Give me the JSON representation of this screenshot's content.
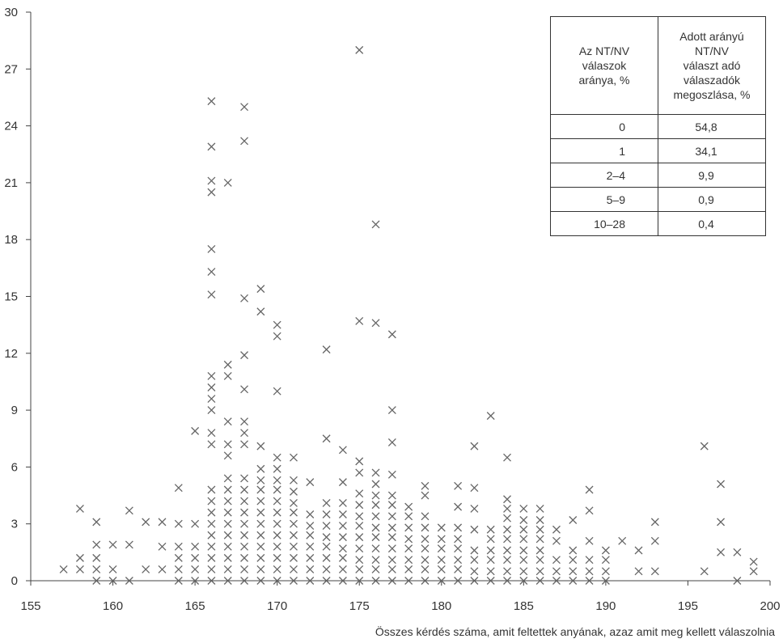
{
  "chart_data": {
    "type": "scatter",
    "title": "",
    "xlabel": "Összes kérdés száma, amit feltettek anyának, azaz amit meg kellett válaszolnia",
    "ylabel": "",
    "xlim": [
      155,
      200
    ],
    "ylim": [
      0,
      30
    ],
    "xticks": [
      "155",
      "160",
      "165",
      "170",
      "175",
      "180",
      "185",
      "190",
      "195",
      "200"
    ],
    "yticks": [
      "0",
      "3",
      "6",
      "9",
      "12",
      "15",
      "18",
      "21",
      "24",
      "27",
      "30"
    ],
    "marker": "x",
    "color": "#666666",
    "points": [
      [
        157,
        0.6
      ],
      [
        158,
        0.6
      ],
      [
        158,
        1.2
      ],
      [
        158,
        3.8
      ],
      [
        159,
        0
      ],
      [
        159,
        0.6
      ],
      [
        159,
        1.2
      ],
      [
        159,
        1.9
      ],
      [
        159,
        3.1
      ],
      [
        160,
        0
      ],
      [
        160,
        0.6
      ],
      [
        160,
        1.9
      ],
      [
        161,
        0
      ],
      [
        161,
        1.9
      ],
      [
        161,
        3.7
      ],
      [
        162,
        0.6
      ],
      [
        162,
        3.1
      ],
      [
        163,
        0.6
      ],
      [
        163,
        1.8
      ],
      [
        163,
        3.1
      ],
      [
        164,
        0
      ],
      [
        164,
        0.6
      ],
      [
        164,
        1.2
      ],
      [
        164,
        1.8
      ],
      [
        164,
        3.0
      ],
      [
        164,
        4.9
      ],
      [
        165,
        0
      ],
      [
        165,
        0.6
      ],
      [
        165,
        1.2
      ],
      [
        165,
        1.8
      ],
      [
        165,
        3.0
      ],
      [
        165,
        7.9
      ],
      [
        166,
        0
      ],
      [
        166,
        0.6
      ],
      [
        166,
        1.2
      ],
      [
        166,
        1.8
      ],
      [
        166,
        2.4
      ],
      [
        166,
        3.0
      ],
      [
        166,
        3.6
      ],
      [
        166,
        4.2
      ],
      [
        166,
        4.8
      ],
      [
        166,
        7.2
      ],
      [
        166,
        7.8
      ],
      [
        166,
        9.0
      ],
      [
        166,
        9.6
      ],
      [
        166,
        10.2
      ],
      [
        166,
        10.8
      ],
      [
        166,
        15.1
      ],
      [
        166,
        16.3
      ],
      [
        166,
        17.5
      ],
      [
        166,
        20.5
      ],
      [
        166,
        21.1
      ],
      [
        166,
        22.9
      ],
      [
        166,
        25.3
      ],
      [
        167,
        0
      ],
      [
        167,
        0.6
      ],
      [
        167,
        1.2
      ],
      [
        167,
        1.8
      ],
      [
        167,
        2.4
      ],
      [
        167,
        3.0
      ],
      [
        167,
        3.6
      ],
      [
        167,
        4.2
      ],
      [
        167,
        4.8
      ],
      [
        167,
        5.4
      ],
      [
        167,
        6.6
      ],
      [
        167,
        7.2
      ],
      [
        167,
        8.4
      ],
      [
        167,
        10.8
      ],
      [
        167,
        11.4
      ],
      [
        167,
        21.0
      ],
      [
        168,
        0
      ],
      [
        168,
        0.6
      ],
      [
        168,
        1.2
      ],
      [
        168,
        1.8
      ],
      [
        168,
        2.4
      ],
      [
        168,
        3.0
      ],
      [
        168,
        3.6
      ],
      [
        168,
        4.2
      ],
      [
        168,
        4.8
      ],
      [
        168,
        5.4
      ],
      [
        168,
        7.2
      ],
      [
        168,
        7.8
      ],
      [
        168,
        8.4
      ],
      [
        168,
        10.1
      ],
      [
        168,
        11.9
      ],
      [
        168,
        14.9
      ],
      [
        168,
        23.2
      ],
      [
        168,
        25.0
      ],
      [
        169,
        0
      ],
      [
        169,
        0.6
      ],
      [
        169,
        1.2
      ],
      [
        169,
        1.8
      ],
      [
        169,
        2.4
      ],
      [
        169,
        3.0
      ],
      [
        169,
        3.6
      ],
      [
        169,
        4.2
      ],
      [
        169,
        4.8
      ],
      [
        169,
        5.3
      ],
      [
        169,
        5.9
      ],
      [
        169,
        7.1
      ],
      [
        169,
        14.2
      ],
      [
        169,
        15.4
      ],
      [
        170,
        0
      ],
      [
        170,
        0.6
      ],
      [
        170,
        1.2
      ],
      [
        170,
        1.8
      ],
      [
        170,
        2.4
      ],
      [
        170,
        3.0
      ],
      [
        170,
        3.6
      ],
      [
        170,
        4.2
      ],
      [
        170,
        4.8
      ],
      [
        170,
        5.3
      ],
      [
        170,
        5.9
      ],
      [
        170,
        6.5
      ],
      [
        170,
        10.0
      ],
      [
        170,
        12.9
      ],
      [
        170,
        13.5
      ],
      [
        171,
        0
      ],
      [
        171,
        0.6
      ],
      [
        171,
        1.2
      ],
      [
        171,
        1.8
      ],
      [
        171,
        2.4
      ],
      [
        171,
        3.0
      ],
      [
        171,
        3.6
      ],
      [
        171,
        4.1
      ],
      [
        171,
        4.7
      ],
      [
        171,
        5.3
      ],
      [
        171,
        6.5
      ],
      [
        172,
        0
      ],
      [
        172,
        0.6
      ],
      [
        172,
        1.2
      ],
      [
        172,
        1.8
      ],
      [
        172,
        2.4
      ],
      [
        172,
        2.9
      ],
      [
        172,
        3.5
      ],
      [
        172,
        5.2
      ],
      [
        173,
        0
      ],
      [
        173,
        0.6
      ],
      [
        173,
        1.2
      ],
      [
        173,
        1.8
      ],
      [
        173,
        2.3
      ],
      [
        173,
        2.9
      ],
      [
        173,
        3.5
      ],
      [
        173,
        4.1
      ],
      [
        173,
        7.5
      ],
      [
        173,
        12.2
      ],
      [
        174,
        0
      ],
      [
        174,
        0.6
      ],
      [
        174,
        1.2
      ],
      [
        174,
        1.7
      ],
      [
        174,
        2.3
      ],
      [
        174,
        2.9
      ],
      [
        174,
        3.5
      ],
      [
        174,
        4.1
      ],
      [
        174,
        5.2
      ],
      [
        174,
        6.9
      ],
      [
        175,
        0
      ],
      [
        175,
        0.6
      ],
      [
        175,
        1.1
      ],
      [
        175,
        1.7
      ],
      [
        175,
        2.3
      ],
      [
        175,
        2.9
      ],
      [
        175,
        3.4
      ],
      [
        175,
        4.0
      ],
      [
        175,
        4.6
      ],
      [
        175,
        5.7
      ],
      [
        175,
        6.3
      ],
      [
        175,
        13.7
      ],
      [
        175,
        28.0
      ],
      [
        176,
        0
      ],
      [
        176,
        0.6
      ],
      [
        176,
        1.1
      ],
      [
        176,
        1.7
      ],
      [
        176,
        2.3
      ],
      [
        176,
        2.8
      ],
      [
        176,
        3.4
      ],
      [
        176,
        4.0
      ],
      [
        176,
        4.5
      ],
      [
        176,
        5.1
      ],
      [
        176,
        5.7
      ],
      [
        176,
        13.6
      ],
      [
        176,
        18.8
      ],
      [
        177,
        0
      ],
      [
        177,
        0.6
      ],
      [
        177,
        1.1
      ],
      [
        177,
        1.7
      ],
      [
        177,
        2.3
      ],
      [
        177,
        2.8
      ],
      [
        177,
        3.4
      ],
      [
        177,
        4.0
      ],
      [
        177,
        4.5
      ],
      [
        177,
        5.6
      ],
      [
        177,
        7.3
      ],
      [
        177,
        9.0
      ],
      [
        177,
        13.0
      ],
      [
        178,
        0
      ],
      [
        178,
        0.6
      ],
      [
        178,
        1.1
      ],
      [
        178,
        1.7
      ],
      [
        178,
        2.2
      ],
      [
        178,
        2.8
      ],
      [
        178,
        3.4
      ],
      [
        178,
        3.9
      ],
      [
        179,
        0
      ],
      [
        179,
        0.6
      ],
      [
        179,
        1.1
      ],
      [
        179,
        1.7
      ],
      [
        179,
        2.2
      ],
      [
        179,
        2.8
      ],
      [
        179,
        3.4
      ],
      [
        179,
        4.5
      ],
      [
        179,
        5.0
      ],
      [
        180,
        0
      ],
      [
        180,
        0.6
      ],
      [
        180,
        1.1
      ],
      [
        180,
        1.7
      ],
      [
        180,
        2.2
      ],
      [
        180,
        2.8
      ],
      [
        181,
        0
      ],
      [
        181,
        0.6
      ],
      [
        181,
        1.1
      ],
      [
        181,
        1.7
      ],
      [
        181,
        2.2
      ],
      [
        181,
        2.8
      ],
      [
        181,
        3.9
      ],
      [
        181,
        5.0
      ],
      [
        182,
        0
      ],
      [
        182,
        0.5
      ],
      [
        182,
        1.1
      ],
      [
        182,
        1.6
      ],
      [
        182,
        2.7
      ],
      [
        182,
        3.8
      ],
      [
        182,
        4.9
      ],
      [
        182,
        7.1
      ],
      [
        183,
        0
      ],
      [
        183,
        0.5
      ],
      [
        183,
        1.1
      ],
      [
        183,
        1.6
      ],
      [
        183,
        2.2
      ],
      [
        183,
        2.7
      ],
      [
        183,
        8.7
      ],
      [
        184,
        0
      ],
      [
        184,
        0.5
      ],
      [
        184,
        1.1
      ],
      [
        184,
        1.6
      ],
      [
        184,
        2.2
      ],
      [
        184,
        2.7
      ],
      [
        184,
        3.3
      ],
      [
        184,
        3.8
      ],
      [
        184,
        4.3
      ],
      [
        184,
        6.5
      ],
      [
        185,
        0
      ],
      [
        185,
        0.5
      ],
      [
        185,
        1.1
      ],
      [
        185,
        1.6
      ],
      [
        185,
        2.2
      ],
      [
        185,
        2.7
      ],
      [
        185,
        3.2
      ],
      [
        185,
        3.8
      ],
      [
        186,
        0
      ],
      [
        186,
        0.5
      ],
      [
        186,
        1.1
      ],
      [
        186,
        1.6
      ],
      [
        186,
        2.2
      ],
      [
        186,
        2.7
      ],
      [
        186,
        3.2
      ],
      [
        186,
        3.8
      ],
      [
        187,
        0
      ],
      [
        187,
        0.5
      ],
      [
        187,
        1.1
      ],
      [
        187,
        2.1
      ],
      [
        187,
        2.7
      ],
      [
        188,
        0
      ],
      [
        188,
        0.5
      ],
      [
        188,
        1.1
      ],
      [
        188,
        1.6
      ],
      [
        188,
        3.2
      ],
      [
        189,
        0
      ],
      [
        189,
        0.5
      ],
      [
        189,
        1.1
      ],
      [
        189,
        2.1
      ],
      [
        189,
        3.7
      ],
      [
        189,
        4.8
      ],
      [
        190,
        0
      ],
      [
        190,
        0.5
      ],
      [
        190,
        1.1
      ],
      [
        190,
        1.6
      ],
      [
        191,
        2.1
      ],
      [
        192,
        0.5
      ],
      [
        192,
        1.6
      ],
      [
        193,
        0.5
      ],
      [
        193,
        2.1
      ],
      [
        193,
        3.1
      ],
      [
        196,
        0.5
      ],
      [
        196,
        7.1
      ],
      [
        197,
        1.5
      ],
      [
        197,
        3.1
      ],
      [
        197,
        5.1
      ],
      [
        198,
        0
      ],
      [
        198,
        1.5
      ],
      [
        199,
        0.5
      ],
      [
        199,
        1.0
      ]
    ]
  },
  "inset_table": {
    "header": [
      [
        "Az NT/NV",
        "válaszok",
        "aránya, %"
      ],
      [
        "Adott arányú",
        "NT/NV",
        "választ adó",
        "válaszadók",
        "megoszlása, %"
      ]
    ],
    "rows": [
      [
        "0",
        "54,8"
      ],
      [
        "1",
        "34,1"
      ],
      [
        "2–4",
        "9,9"
      ],
      [
        "5–9",
        "0,9"
      ],
      [
        "10–28",
        "0,4"
      ]
    ]
  }
}
